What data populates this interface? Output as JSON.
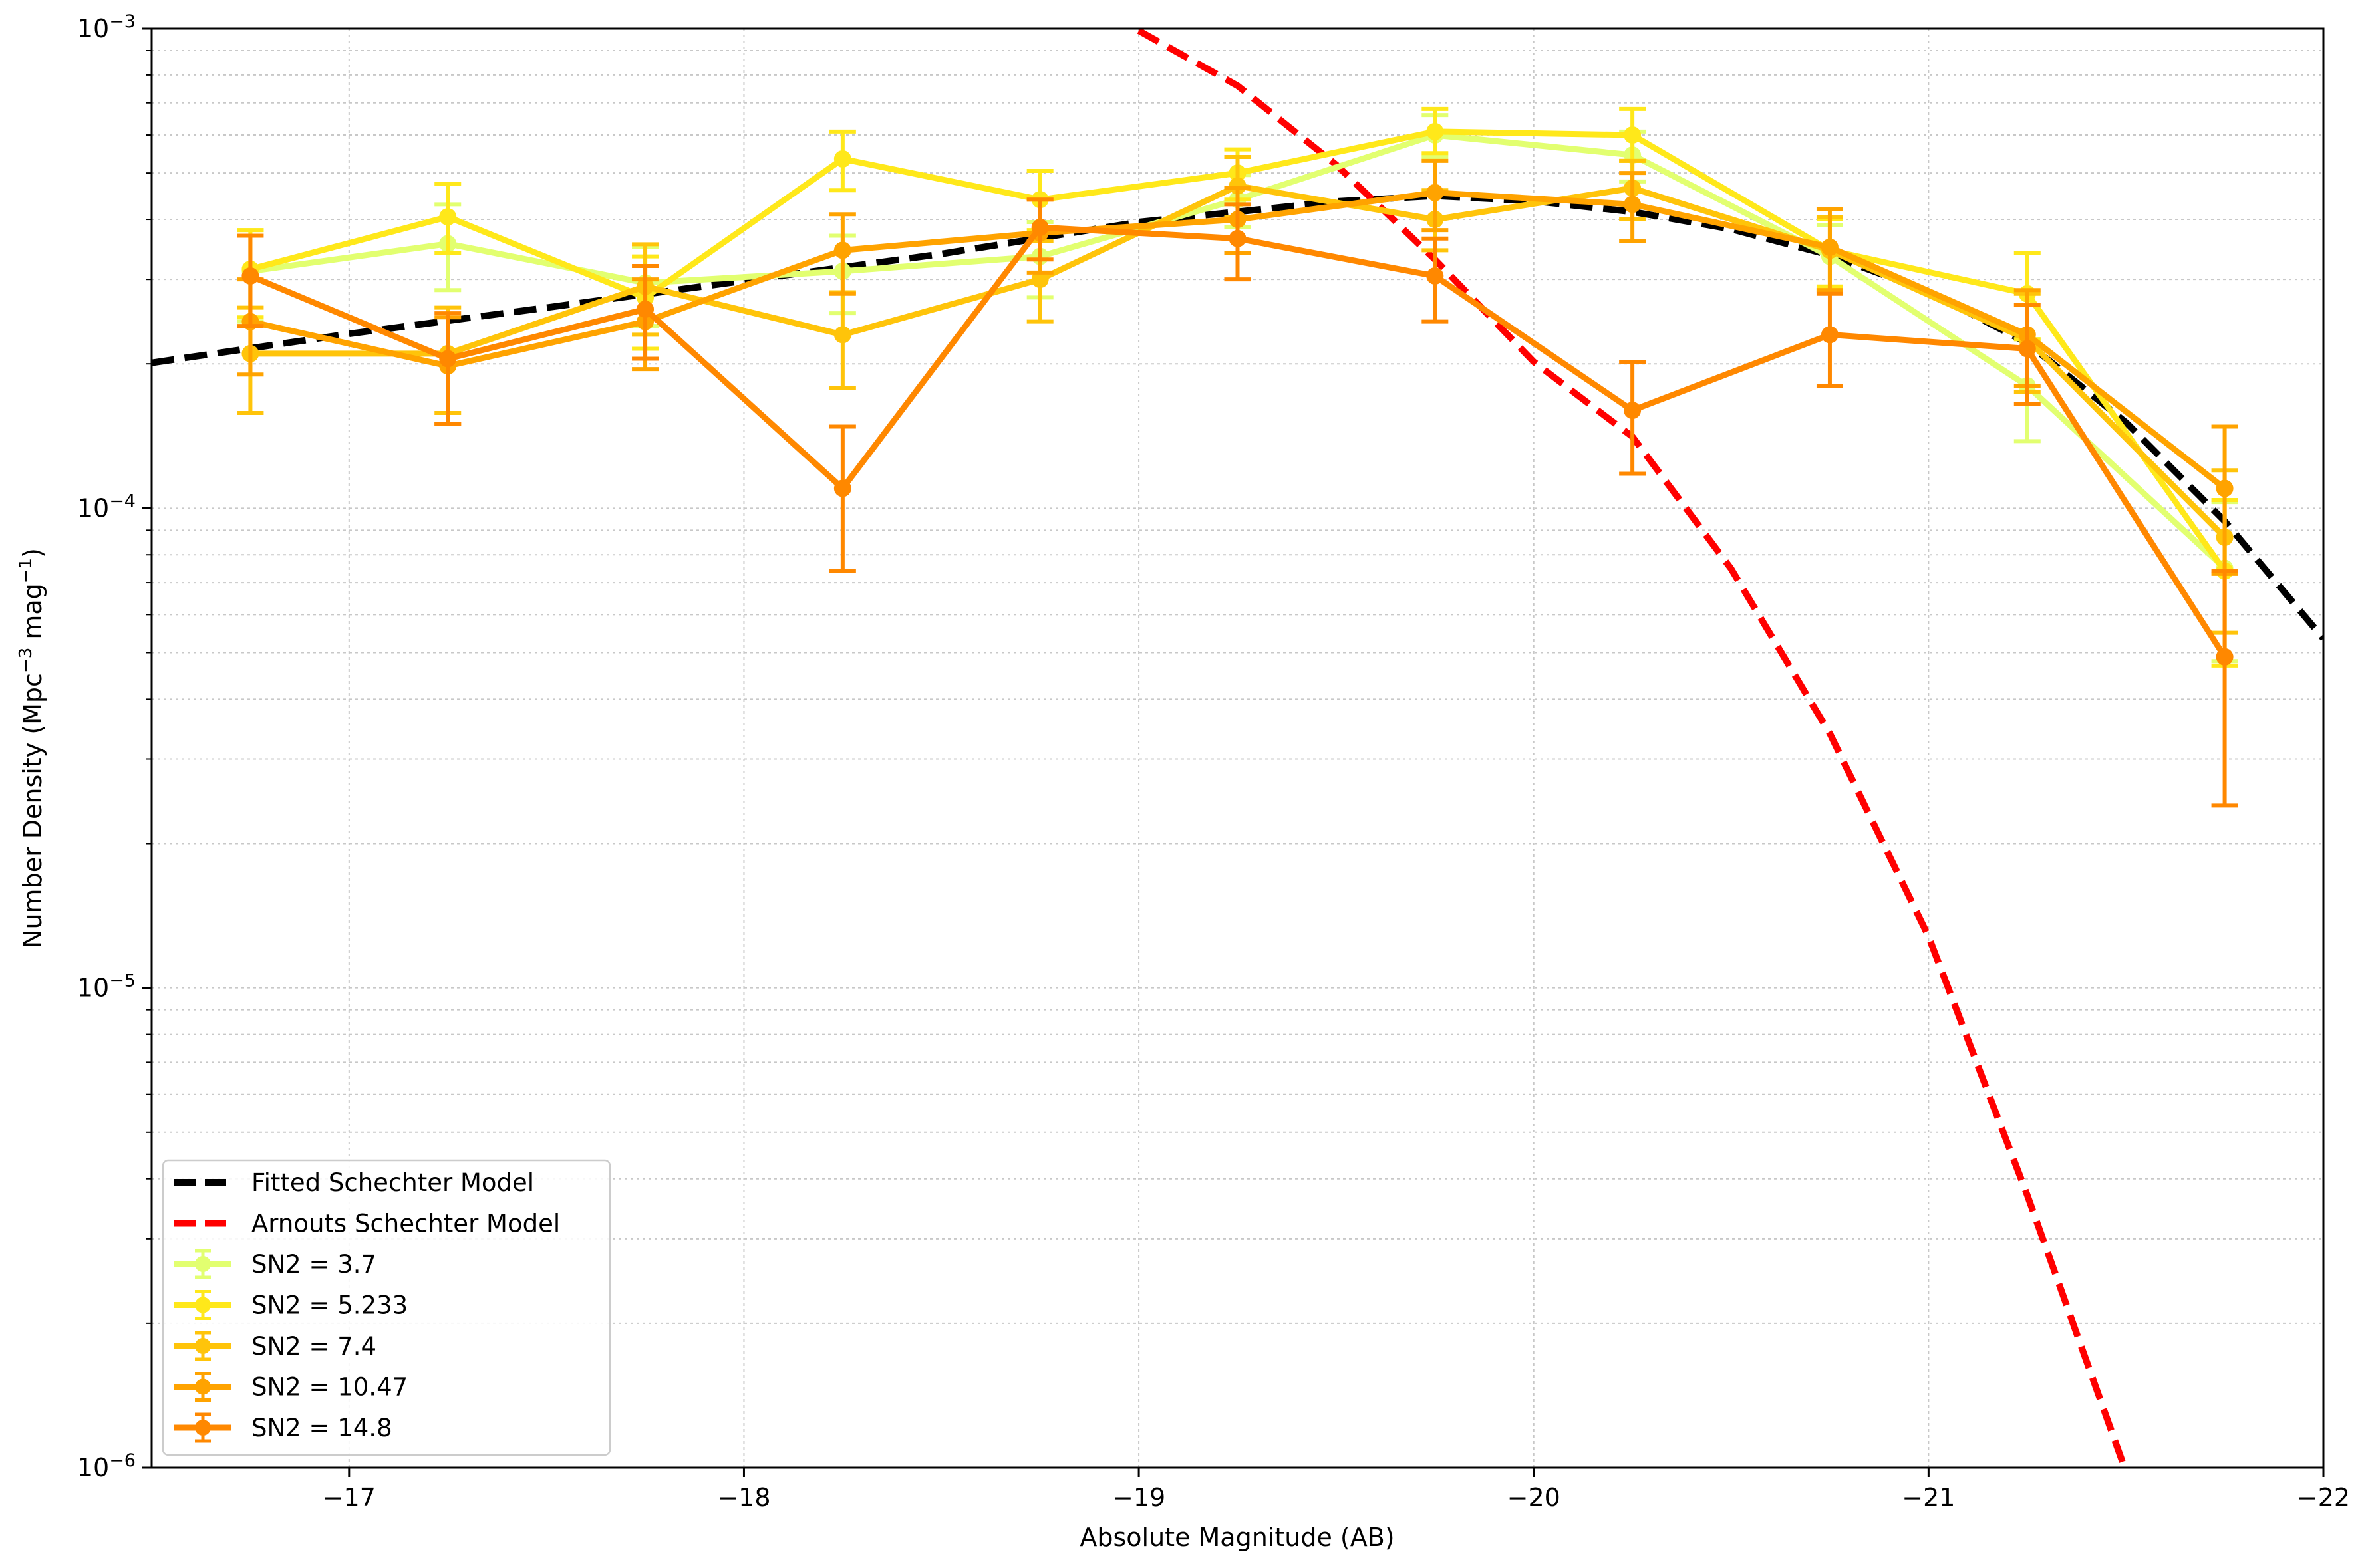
{
  "chart_data": {
    "type": "line",
    "title": "",
    "xlabel": "Absolute Magnitude (AB)",
    "ylabel": "Number Density (Mpc",
    "ylabel_sup1": "−3",
    "ylabel_mid": " mag",
    "ylabel_sup2": "−1",
    "ylabel_end": ")",
    "xlim": [
      -16.5,
      -22
    ],
    "ylim": [
      1e-06,
      0.001
    ],
    "yscale": "log",
    "grid": true,
    "legend_position": "lower-left",
    "x_ticks": [
      -17,
      -18,
      -19,
      -20,
      -21,
      -22
    ],
    "x_tick_labels": [
      "−17",
      "−18",
      "−19",
      "−20",
      "−21",
      "−22"
    ],
    "y_ticks": [
      {
        "value": 0.001,
        "base": "10",
        "exp": "−3"
      },
      {
        "value": 0.0001,
        "base": "10",
        "exp": "−4"
      },
      {
        "value": 1e-05,
        "base": "10",
        "exp": "−5"
      },
      {
        "value": 1e-06,
        "base": "10",
        "exp": "−6"
      }
    ],
    "x": [
      -16.75,
      -17.25,
      -17.75,
      -18.25,
      -18.75,
      -19.25,
      -19.75,
      -20.25,
      -20.75,
      -21.25,
      -21.75
    ],
    "models": [
      {
        "name": "Fitted Schechter Model",
        "color": "#000000",
        "x": [
          -16.5,
          -17.0,
          -17.5,
          -18.0,
          -18.5,
          -19.0,
          -19.5,
          -19.75,
          -20.0,
          -20.25,
          -20.5,
          -20.75,
          -21.0,
          -21.25,
          -21.5,
          -21.75,
          -22.0
        ],
        "y": [
          0.000201,
          0.000231,
          0.000262,
          0.000298,
          0.000339,
          0.000395,
          0.000436,
          0.000448,
          0.000437,
          0.000415,
          0.000382,
          0.000337,
          0.000283,
          0.000221,
          0.000151,
          9.4e-05,
          5.35e-05
        ]
      },
      {
        "name": "Arnouts Schechter Model",
        "color": "#ff0000",
        "x": [
          -19.0,
          -19.25,
          -19.5,
          -19.75,
          -20.0,
          -20.25,
          -20.5,
          -20.75,
          -21.0,
          -21.25,
          -21.5
        ],
        "y": [
          0.00099,
          0.00076,
          0.00052,
          0.00033,
          0.000202,
          0.000141,
          7.48e-05,
          3.39e-05,
          1.28e-05,
          3.7e-06,
          9.8e-07
        ]
      }
    ],
    "series": [
      {
        "name": "SN2 = 3.7",
        "color": "#e2ff70",
        "y": [
          0.000312,
          0.000356,
          0.000295,
          0.000312,
          0.000335,
          0.00044,
          0.0006,
          0.000545,
          0.000335,
          0.00018,
          7.5e-05
        ],
        "lo": [
          0.000245,
          0.000285,
          0.00024,
          0.000255,
          0.000275,
          0.000385,
          0.00054,
          0.00048,
          0.000285,
          0.000138,
          4.8e-05
        ],
        "hi": [
          0.00038,
          0.00043,
          0.00035,
          0.00037,
          0.000395,
          0.000495,
          0.00066,
          0.00061,
          0.00039,
          0.000225,
          0.000103
        ]
      },
      {
        "name": "SN2 = 5.233",
        "color": "#ffe81a",
        "y": [
          0.000315,
          0.000405,
          0.000275,
          0.000535,
          0.00044,
          0.0005,
          0.00061,
          0.0006,
          0.000345,
          0.00028,
          7.4e-05
        ],
        "lo": [
          0.00025,
          0.00034,
          0.000215,
          0.00046,
          0.00038,
          0.00044,
          0.00055,
          0.00053,
          0.00029,
          0.000225,
          4.7e-05
        ],
        "hi": [
          0.00038,
          0.000475,
          0.000335,
          0.00061,
          0.000505,
          0.00056,
          0.00068,
          0.00068,
          0.0004,
          0.00034,
          0.000104
        ]
      },
      {
        "name": "SN2 = 7.4",
        "color": "#ffc40a",
        "y": [
          0.00021,
          0.00021,
          0.00029,
          0.00023,
          0.0003,
          0.00047,
          0.0004,
          0.000465,
          0.000345,
          0.000225,
          8.7e-05
        ],
        "lo": [
          0.000158,
          0.000158,
          0.00023,
          0.000178,
          0.000245,
          0.000405,
          0.000345,
          0.0004,
          0.000285,
          0.000175,
          5.5e-05
        ],
        "hi": [
          0.000262,
          0.000262,
          0.000355,
          0.000282,
          0.00036,
          0.00054,
          0.00046,
          0.00053,
          0.000405,
          0.00028,
          0.00012
        ]
      },
      {
        "name": "SN2 = 10.47",
        "color": "#ffa300",
        "y": [
          0.000245,
          0.000198,
          0.000245,
          0.000345,
          0.000375,
          0.0004,
          0.000455,
          0.00043,
          0.00035,
          0.00023,
          0.00011
        ],
        "lo": [
          0.00019,
          0.00015,
          0.000195,
          0.00028,
          0.00031,
          0.00034,
          0.00038,
          0.00036,
          0.000285,
          0.00018,
          7.3e-05
        ],
        "hi": [
          0.0003,
          0.00025,
          0.0003,
          0.00041,
          0.00044,
          0.000465,
          0.00053,
          0.0005,
          0.00042,
          0.000285,
          0.000148
        ]
      },
      {
        "name": "SN2 = 14.8",
        "color": "#ff8800",
        "y": [
          0.000305,
          0.000205,
          0.00026,
          0.00011,
          0.000385,
          0.000365,
          0.000305,
          0.00016,
          0.00023,
          0.000215,
          4.9e-05
        ],
        "lo": [
          0.00024,
          0.00015,
          0.000205,
          7.4e-05,
          0.00033,
          0.0003,
          0.000245,
          0.000118,
          0.00018,
          0.000165,
          2.4e-05
        ],
        "hi": [
          0.00037,
          0.000255,
          0.00032,
          0.000148,
          0.00044,
          0.00043,
          0.000365,
          0.000202,
          0.00028,
          0.000265,
          7.4e-05
        ]
      }
    ]
  }
}
